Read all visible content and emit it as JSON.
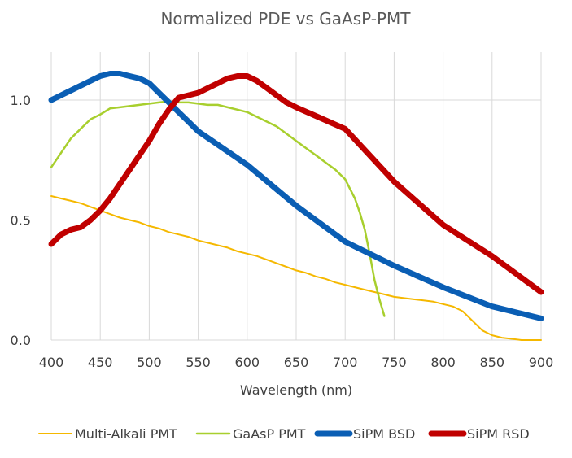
{
  "chart_data": {
    "type": "line",
    "title": "Normalized PDE vs GaAsP-PMT",
    "xlabel": "Wavelength (nm)",
    "ylabel": "",
    "xlim": [
      400,
      900
    ],
    "ylim": [
      0,
      1.2
    ],
    "xticks": [
      "400",
      "450",
      "500",
      "550",
      "600",
      "650",
      "700",
      "750",
      "800",
      "850",
      "900"
    ],
    "yticks": [
      "0.0",
      "0.5",
      "1.0"
    ],
    "grid": true,
    "legend_position": "bottom",
    "colors": {
      "multi_alkali": "#f5b800",
      "gaasp": "#a8cf2e",
      "sipm_bsd": "#0a5eb4",
      "sipm_rsd": "#c00000"
    },
    "series": [
      {
        "name": "Multi-Alkali PMT",
        "x": [
          400,
          410,
          420,
          430,
          440,
          450,
          460,
          470,
          480,
          490,
          500,
          510,
          520,
          530,
          540,
          550,
          560,
          570,
          580,
          590,
          600,
          610,
          620,
          630,
          640,
          650,
          660,
          670,
          680,
          690,
          700,
          710,
          720,
          730,
          740,
          750,
          760,
          770,
          780,
          790,
          800,
          810,
          820,
          830,
          840,
          850,
          860,
          870,
          880,
          890,
          900
        ],
        "values": [
          0.6,
          0.59,
          0.58,
          0.57,
          0.555,
          0.54,
          0.525,
          0.51,
          0.5,
          0.49,
          0.475,
          0.465,
          0.45,
          0.44,
          0.43,
          0.415,
          0.405,
          0.395,
          0.385,
          0.37,
          0.36,
          0.35,
          0.335,
          0.32,
          0.305,
          0.29,
          0.28,
          0.265,
          0.255,
          0.24,
          0.23,
          0.22,
          0.21,
          0.2,
          0.19,
          0.18,
          0.175,
          0.17,
          0.165,
          0.16,
          0.15,
          0.14,
          0.12,
          0.08,
          0.04,
          0.02,
          0.01,
          0.005,
          0.0,
          0.0,
          0.0
        ]
      },
      {
        "name": "GaAsP PMT",
        "x": [
          400,
          405,
          410,
          420,
          430,
          440,
          450,
          460,
          470,
          480,
          490,
          500,
          510,
          520,
          530,
          540,
          550,
          560,
          570,
          580,
          590,
          600,
          610,
          620,
          630,
          640,
          650,
          660,
          670,
          680,
          690,
          700,
          705,
          710,
          715,
          720,
          725,
          730,
          735,
          740
        ],
        "values": [
          0.72,
          0.75,
          0.78,
          0.84,
          0.88,
          0.92,
          0.94,
          0.965,
          0.97,
          0.975,
          0.98,
          0.985,
          0.99,
          0.995,
          0.99,
          0.99,
          0.985,
          0.98,
          0.98,
          0.97,
          0.96,
          0.95,
          0.93,
          0.91,
          0.89,
          0.86,
          0.83,
          0.8,
          0.77,
          0.74,
          0.71,
          0.67,
          0.63,
          0.59,
          0.53,
          0.46,
          0.36,
          0.25,
          0.17,
          0.1
        ]
      },
      {
        "name": "SiPM BSD",
        "x": [
          400,
          410,
          420,
          430,
          440,
          450,
          460,
          470,
          480,
          490,
          500,
          510,
          520,
          530,
          540,
          550,
          600,
          650,
          700,
          750,
          800,
          850,
          900
        ],
        "values": [
          1.0,
          1.02,
          1.04,
          1.06,
          1.08,
          1.1,
          1.11,
          1.11,
          1.1,
          1.09,
          1.07,
          1.03,
          0.99,
          0.95,
          0.91,
          0.87,
          0.73,
          0.56,
          0.41,
          0.31,
          0.22,
          0.14,
          0.09
        ]
      },
      {
        "name": "SiPM RSD",
        "x": [
          400,
          410,
          420,
          430,
          440,
          450,
          460,
          470,
          480,
          490,
          500,
          510,
          520,
          530,
          540,
          550,
          560,
          570,
          580,
          590,
          600,
          610,
          620,
          630,
          640,
          650,
          700,
          750,
          800,
          850,
          900
        ],
        "values": [
          0.4,
          0.44,
          0.46,
          0.47,
          0.5,
          0.54,
          0.59,
          0.65,
          0.71,
          0.77,
          0.83,
          0.9,
          0.96,
          1.01,
          1.02,
          1.03,
          1.05,
          1.07,
          1.09,
          1.1,
          1.1,
          1.08,
          1.05,
          1.02,
          0.99,
          0.97,
          0.88,
          0.66,
          0.48,
          0.35,
          0.2
        ]
      }
    ]
  }
}
